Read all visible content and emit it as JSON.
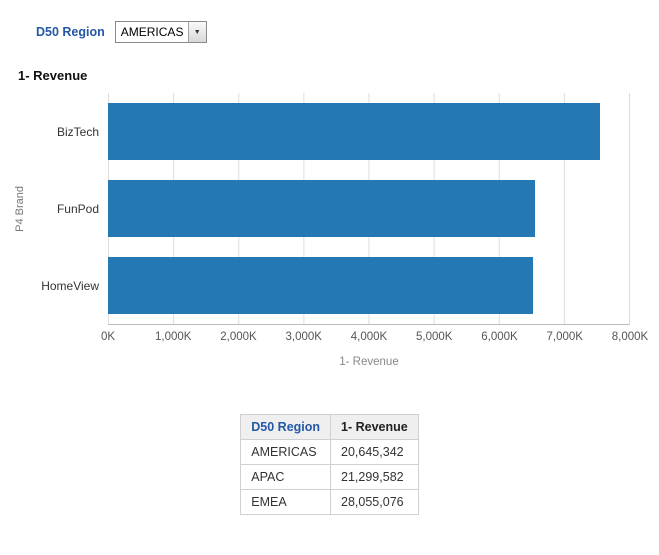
{
  "prompt": {
    "label": "D50 Region",
    "dropdown_value": "AMERICAS"
  },
  "chart": {
    "title": "1- Revenue"
  },
  "colors": {
    "label_blue": "#2458A6",
    "bar_blue": "#2478B4"
  },
  "chart_data": [
    {
      "type": "bar",
      "orientation": "horizontal",
      "title": "1- Revenue",
      "categories": [
        "BizTech",
        "FunPod",
        "HomeView"
      ],
      "values": [
        7560,
        6560,
        6525
      ],
      "value_units": "K",
      "xlabel": "1- Revenue",
      "ylabel": "P4 Brand",
      "xlim": [
        0,
        8000
      ],
      "xticks": [
        "0K",
        "1,000K",
        "2,000K",
        "3,000K",
        "4,000K",
        "5,000K",
        "6,000K",
        "7,000K",
        "8,000K"
      ],
      "grid": true,
      "legend": "none",
      "bar_color": "#2478B4"
    },
    {
      "type": "table",
      "columns": [
        "D50 Region",
        "1- Revenue"
      ],
      "rows": [
        [
          "AMERICAS",
          "20,645,342"
        ],
        [
          "APAC",
          "21,299,582"
        ],
        [
          "EMEA",
          "28,055,076"
        ]
      ]
    }
  ]
}
